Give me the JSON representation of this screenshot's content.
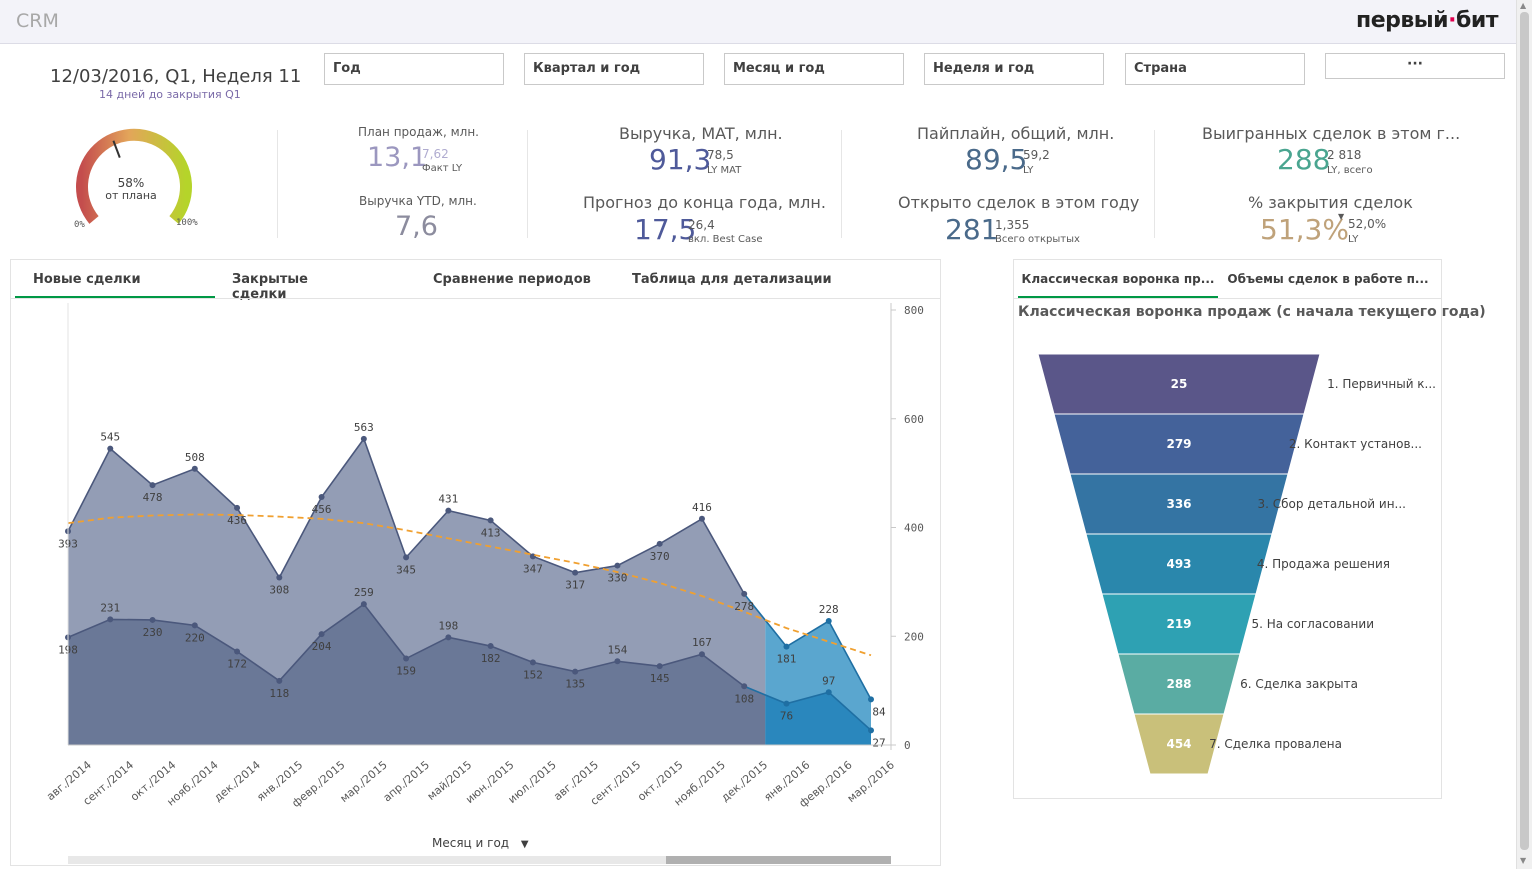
{
  "app": {
    "title": "CRM",
    "logo_text": "первый",
    "logo_accent": "·",
    "logo_tail": "бит"
  },
  "date": {
    "main": "12/03/2016, Q1, Неделя 11",
    "sub": "14 дней до закрытия Q1"
  },
  "filters": [
    "Год",
    "Квартал и год",
    "Месяц и год",
    "Неделя и год",
    "Страна",
    "···"
  ],
  "gauge": {
    "value_text": "58%",
    "caption": "от плана",
    "min": "0%",
    "max": "100%",
    "fraction": 0.58
  },
  "kpis": {
    "plan": {
      "label": "План продаж, млн.",
      "value": "13,1",
      "sup": "7,62",
      "sub": "Факт LY"
    },
    "ytd": {
      "label": "Выручка YTD, млн.",
      "value": "7,6"
    },
    "mat": {
      "label": "Выручка, MAT, млн.",
      "value": "91,3",
      "sup": "78,5",
      "sub": "LY MAT"
    },
    "forecast": {
      "label": "Прогноз до конца года, млн.",
      "value": "17,5",
      "sup": "26,4",
      "sub": "вкл. Best Case"
    },
    "pipeline": {
      "label": "Пайплайн, общий, млн.",
      "value": "89,5",
      "sup": "59,2",
      "sub": "LY"
    },
    "opened": {
      "label": "Открыто сделок в этом году",
      "value": "281",
      "sup": "1,355",
      "sub": "Всего открытых"
    },
    "won": {
      "label": "Выигранных сделок в этом г...",
      "value": "288",
      "sup": "2 818",
      "sub": "LY, всего"
    },
    "close_rate": {
      "label": "% закрытия сделок",
      "value": "51,3%",
      "sup": "52,0%",
      "sub": "LY",
      "arrow": "▼"
    }
  },
  "colors": {
    "accent_green": "#009845",
    "area_top": "#939db5",
    "area_bottom": "#6a7897",
    "highlight_top": "#5aa6cf",
    "highlight_bottom": "#2a87bd",
    "trend": "#f0a030"
  },
  "left_tabs": [
    "Новые сделки",
    "Закрытые сделки",
    "Сравнение периодов",
    "Таблица для детализации"
  ],
  "right_tabs": [
    "Классическая воронка пр...",
    "Объемы сделок в работе п..."
  ],
  "dimension_label": "Месяц и год",
  "chart_data": [
    {
      "type": "area",
      "title": "",
      "categories": [
        "авг./2014",
        "сент./2014",
        "окт./2014",
        "нояб./2014",
        "дек./2014",
        "янв./2015",
        "февр./2015",
        "мар./2015",
        "апр./2015",
        "май/2015",
        "июн./2015",
        "июл./2015",
        "авг./2015",
        "сент./2015",
        "окт./2015",
        "нояб./2015",
        "дек./2015",
        "янв./2016",
        "февр./2016",
        "мар./2016"
      ],
      "series": [
        {
          "values": [
            393,
            545,
            478,
            508,
            436,
            308,
            456,
            563,
            345,
            431,
            413,
            347,
            317,
            330,
            370,
            416,
            278,
            181,
            228,
            84
          ]
        },
        {
          "values": [
            198,
            231,
            230,
            220,
            172,
            118,
            204,
            259,
            159,
            198,
            182,
            152,
            135,
            154,
            145,
            167,
            108,
            76,
            97,
            27
          ]
        }
      ],
      "trend": [
        408,
        418,
        422,
        424,
        423,
        420,
        416,
        408,
        395,
        380,
        365,
        350,
        335,
        318,
        298,
        274,
        245,
        215,
        190,
        165
      ],
      "highlight_from_index": 17,
      "ylim": [
        0,
        800
      ],
      "yticks": [
        0,
        200,
        400,
        600,
        800
      ]
    },
    {
      "type": "funnel",
      "title": "Классическая воронка продаж (с начала текущего года)",
      "categories": [
        "1. Первичный к...",
        "2. Контакт установ...",
        "3. Сбор детальной ин...",
        "4. Продажа решения",
        "5. На согласовании",
        "6. Сделка закрыта",
        "7. Сделка провалена"
      ],
      "values": [
        25,
        279,
        336,
        493,
        219,
        288,
        454
      ],
      "colors": [
        "#5a5689",
        "#44629a",
        "#3474a3",
        "#2a87ac",
        "#2ea1b3",
        "#5aaca3",
        "#c9c07a"
      ]
    }
  ]
}
